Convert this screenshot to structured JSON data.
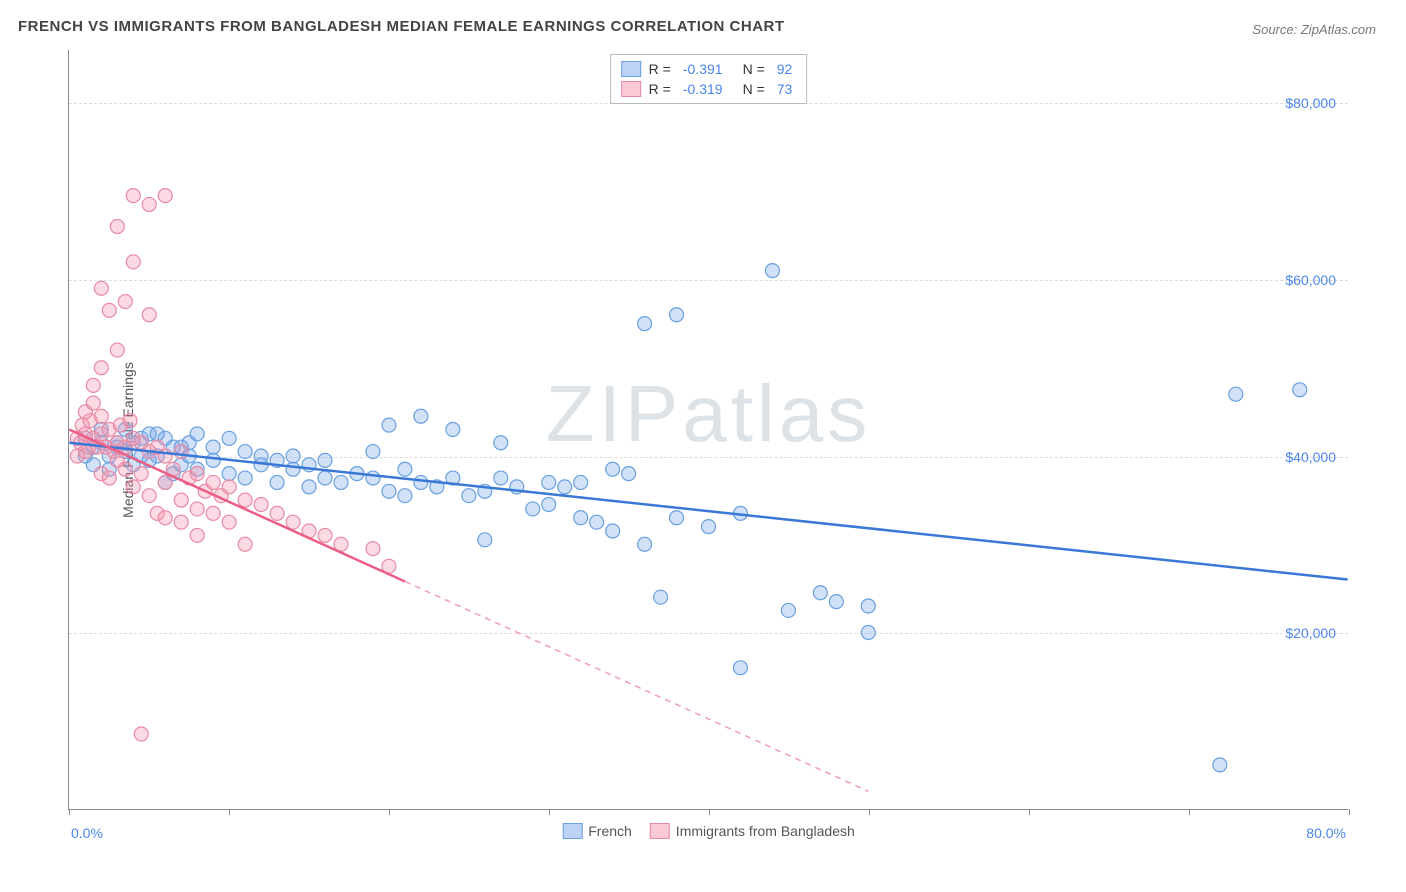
{
  "title": "FRENCH VS IMMIGRANTS FROM BANGLADESH MEDIAN FEMALE EARNINGS CORRELATION CHART",
  "source_label": "Source:",
  "source_name": "ZipAtlas.com",
  "watermark": "ZIPatlas",
  "y_axis_label": "Median Female Earnings",
  "chart": {
    "type": "scatter",
    "xlim": [
      0,
      80
    ],
    "ylim": [
      0,
      86000
    ],
    "y_ticks": [
      20000,
      40000,
      60000,
      80000
    ],
    "y_tick_labels": [
      "$20,000",
      "$40,000",
      "$60,000",
      "$80,000"
    ],
    "x_ticks": [
      0,
      10,
      20,
      30,
      40,
      50,
      60,
      70,
      80
    ],
    "x_min_label": "0.0%",
    "x_max_label": "80.0%",
    "background_color": "#ffffff",
    "grid_color": "#dddddd",
    "series": [
      {
        "name": "French",
        "marker_fill": "rgba(120,170,235,0.35)",
        "marker_stroke": "#6aa0df",
        "line_color": "#3a78d6",
        "line_width": 2.5,
        "r_value": "-0.391",
        "n_value": "92",
        "trend": {
          "x1": 0,
          "y1": 41500,
          "x2": 80,
          "y2": 26000,
          "solid_until_x": 80
        },
        "points": [
          [
            1,
            40000
          ],
          [
            1,
            42000
          ],
          [
            1.5,
            39000
          ],
          [
            1.5,
            41000
          ],
          [
            2,
            41500
          ],
          [
            2,
            43000
          ],
          [
            2.5,
            40000
          ],
          [
            2.5,
            38500
          ],
          [
            3,
            41000
          ],
          [
            3,
            41500
          ],
          [
            3.5,
            40500
          ],
          [
            3.5,
            43000
          ],
          [
            4,
            41500
          ],
          [
            4,
            39000
          ],
          [
            4.5,
            40000
          ],
          [
            4.5,
            42000
          ],
          [
            5,
            42500
          ],
          [
            5,
            39500
          ],
          [
            5.5,
            42500
          ],
          [
            5.5,
            40000
          ],
          [
            6,
            37000
          ],
          [
            6,
            42000
          ],
          [
            6.5,
            41000
          ],
          [
            6.5,
            38000
          ],
          [
            7,
            39000
          ],
          [
            7,
            41000
          ],
          [
            7.5,
            40000
          ],
          [
            7.5,
            41500
          ],
          [
            8,
            38500
          ],
          [
            8,
            42500
          ],
          [
            9,
            39500
          ],
          [
            9,
            41000
          ],
          [
            10,
            42000
          ],
          [
            10,
            38000
          ],
          [
            11,
            40500
          ],
          [
            11,
            37500
          ],
          [
            12,
            40000
          ],
          [
            12,
            39000
          ],
          [
            13,
            39500
          ],
          [
            13,
            37000
          ],
          [
            14,
            38500
          ],
          [
            14,
            40000
          ],
          [
            15,
            36500
          ],
          [
            15,
            39000
          ],
          [
            16,
            37500
          ],
          [
            16,
            39500
          ],
          [
            17,
            37000
          ],
          [
            18,
            38000
          ],
          [
            19,
            37500
          ],
          [
            19,
            40500
          ],
          [
            20,
            36000
          ],
          [
            20,
            43500
          ],
          [
            21,
            38500
          ],
          [
            21,
            35500
          ],
          [
            22,
            37000
          ],
          [
            22,
            44500
          ],
          [
            23,
            36500
          ],
          [
            24,
            37500
          ],
          [
            24,
            43000
          ],
          [
            25,
            35500
          ],
          [
            26,
            36000
          ],
          [
            26,
            30500
          ],
          [
            27,
            37500
          ],
          [
            27,
            41500
          ],
          [
            28,
            36500
          ],
          [
            29,
            34000
          ],
          [
            30,
            37000
          ],
          [
            30,
            34500
          ],
          [
            31,
            36500
          ],
          [
            32,
            33000
          ],
          [
            32,
            37000
          ],
          [
            33,
            32500
          ],
          [
            34,
            38500
          ],
          [
            34,
            31500
          ],
          [
            35,
            38000
          ],
          [
            36,
            30000
          ],
          [
            36,
            55000
          ],
          [
            37,
            24000
          ],
          [
            38,
            33000
          ],
          [
            38,
            56000
          ],
          [
            40,
            32000
          ],
          [
            42,
            33500
          ],
          [
            42,
            16000
          ],
          [
            44,
            61000
          ],
          [
            45,
            22500
          ],
          [
            47,
            24500
          ],
          [
            48,
            23500
          ],
          [
            50,
            20000
          ],
          [
            50,
            23000
          ],
          [
            73,
            47000
          ],
          [
            72,
            5000
          ],
          [
            77,
            47500
          ]
        ]
      },
      {
        "name": "Immigrants from Bangladesh",
        "marker_fill": "rgba(245,150,175,0.35)",
        "marker_stroke": "#e88aa5",
        "line_color": "#ec5e86",
        "line_width": 2.5,
        "r_value": "-0.319",
        "n_value": "73",
        "trend": {
          "x1": 0,
          "y1": 43000,
          "x2": 50,
          "y2": 2000,
          "solid_until_x": 21
        },
        "points": [
          [
            0.5,
            42000
          ],
          [
            0.5,
            40000
          ],
          [
            0.7,
            41500
          ],
          [
            0.8,
            43500
          ],
          [
            1,
            42500
          ],
          [
            1,
            40500
          ],
          [
            1,
            45000
          ],
          [
            1.2,
            41000
          ],
          [
            1.3,
            44000
          ],
          [
            1.5,
            42000
          ],
          [
            1.5,
            46000
          ],
          [
            1.5,
            48000
          ],
          [
            1.8,
            41000
          ],
          [
            2,
            42500
          ],
          [
            2,
            44500
          ],
          [
            2,
            38000
          ],
          [
            2,
            50000
          ],
          [
            2,
            59000
          ],
          [
            2.3,
            41000
          ],
          [
            2.5,
            43000
          ],
          [
            2.5,
            37500
          ],
          [
            2.5,
            56500
          ],
          [
            2.8,
            40500
          ],
          [
            3,
            41500
          ],
          [
            3,
            39500
          ],
          [
            3,
            52000
          ],
          [
            3,
            66000
          ],
          [
            3.2,
            43500
          ],
          [
            3.5,
            41000
          ],
          [
            3.5,
            38500
          ],
          [
            3.5,
            57500
          ],
          [
            3.8,
            44000
          ],
          [
            4,
            42000
          ],
          [
            4,
            36500
          ],
          [
            4,
            62000
          ],
          [
            4,
            69500
          ],
          [
            4.5,
            41500
          ],
          [
            4.5,
            38000
          ],
          [
            4.5,
            8500
          ],
          [
            5,
            40500
          ],
          [
            5,
            35500
          ],
          [
            5,
            56000
          ],
          [
            5,
            68500
          ],
          [
            5.5,
            41000
          ],
          [
            5.5,
            33500
          ],
          [
            6,
            40000
          ],
          [
            6,
            37000
          ],
          [
            6,
            33000
          ],
          [
            6,
            69500
          ],
          [
            6.5,
            38500
          ],
          [
            7,
            40500
          ],
          [
            7,
            35000
          ],
          [
            7,
            32500
          ],
          [
            7.5,
            37500
          ],
          [
            8,
            38000
          ],
          [
            8,
            34000
          ],
          [
            8,
            31000
          ],
          [
            8.5,
            36000
          ],
          [
            9,
            37000
          ],
          [
            9,
            33500
          ],
          [
            9.5,
            35500
          ],
          [
            10,
            36500
          ],
          [
            10,
            32500
          ],
          [
            11,
            35000
          ],
          [
            11,
            30000
          ],
          [
            12,
            34500
          ],
          [
            13,
            33500
          ],
          [
            14,
            32500
          ],
          [
            15,
            31500
          ],
          [
            16,
            31000
          ],
          [
            17,
            30000
          ],
          [
            19,
            29500
          ],
          [
            20,
            27500
          ]
        ]
      }
    ],
    "legend_top": {
      "rows": [
        {
          "swatch_fill": "rgba(120,170,235,0.5)",
          "swatch_stroke": "#6aa0df",
          "r_label": "R =",
          "r_val": "-0.391",
          "n_label": "N =",
          "n_val": "92"
        },
        {
          "swatch_fill": "rgba(245,150,175,0.5)",
          "swatch_stroke": "#e88aa5",
          "r_label": "R =",
          "r_val": "-0.319",
          "n_label": "N =",
          "n_val": "73"
        }
      ]
    },
    "legend_bottom": {
      "items": [
        {
          "swatch_fill": "rgba(120,170,235,0.5)",
          "swatch_stroke": "#6aa0df",
          "label": "French"
        },
        {
          "swatch_fill": "rgba(245,150,175,0.5)",
          "swatch_stroke": "#e88aa5",
          "label": "Immigrants from Bangladesh"
        }
      ]
    }
  }
}
